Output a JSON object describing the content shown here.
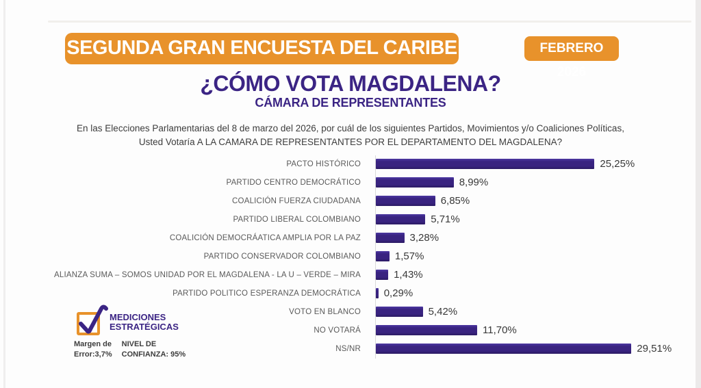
{
  "header": {
    "banner": "SEGUNDA GRAN ENCUESTA DEL CARIBE",
    "date_badge": "FEBRERO 2026",
    "title": "¿CÓMO VOTA MAGDALENA?",
    "subtitle": "CÁMARA DE REPRESENTANTES",
    "question_line1": "En las Elecciones Parlamentarias del 8 de marzo del 2026, por cuál de los siguientes Partidos, Movimientos y/o Coaliciones Políticas,",
    "question_line2": "Usted Votaría A LA CAMARA DE REPRESENTANTES POR EL DEPARTAMENTO DEL MAGDALENA?"
  },
  "chart_data": {
    "type": "bar",
    "orientation": "horizontal",
    "title": "¿CÓMO VOTA MAGDALENA? — CÁMARA DE REPRESENTANTES",
    "categories": [
      "PACTO HISTÓRICO",
      "PARTIDO CENTRO DEMOCRÁTICO",
      "COALICIÓN FUERZA CIUDADANA",
      "PARTIDO LIBERAL COLOMBIANO",
      "COALICIÓN DEMOCRÁATICA AMPLIA POR LA PAZ",
      "PARTIDO CONSERVADOR COLOMBIANO",
      "ALIANZA SUMA – SOMOS UNIDAD POR EL MAGDALENA - LA U – VERDE – MIRA",
      "PARTIDO POLITICO ESPERANZA DEMOCRÁTICA",
      "VOTO EN BLANCO",
      "NO VOTARÁ",
      "NS/NR"
    ],
    "values": [
      25.25,
      8.99,
      6.85,
      5.71,
      3.28,
      1.57,
      1.43,
      0.29,
      5.42,
      11.7,
      29.51
    ],
    "value_labels": [
      "25,25%",
      "8,99%",
      "6,85%",
      "5,71%",
      "3,28%",
      "1,57%",
      "1,43%",
      "0,29%",
      "5,42%",
      "11,70%",
      "29,51%"
    ],
    "xlabel": "",
    "ylabel": "",
    "xlim": [
      0,
      30
    ],
    "grid": false,
    "legend": false,
    "bar_color": "#392380"
  },
  "footer": {
    "logo_line1": "MEDICIONES",
    "logo_line2": "ESTRATÉGICAS",
    "margin_line1": "Margen de",
    "margin_line2": "Error:3,7%",
    "confidence_line1": "NIVEL DE",
    "confidence_line2": "CONFIANZA: 95%"
  },
  "colors": {
    "accent_orange": "#e8922b",
    "brand_purple": "#3b2484",
    "bar_purple": "#392380",
    "label_gray": "#595959",
    "text_dark": "#3c3c3c"
  }
}
